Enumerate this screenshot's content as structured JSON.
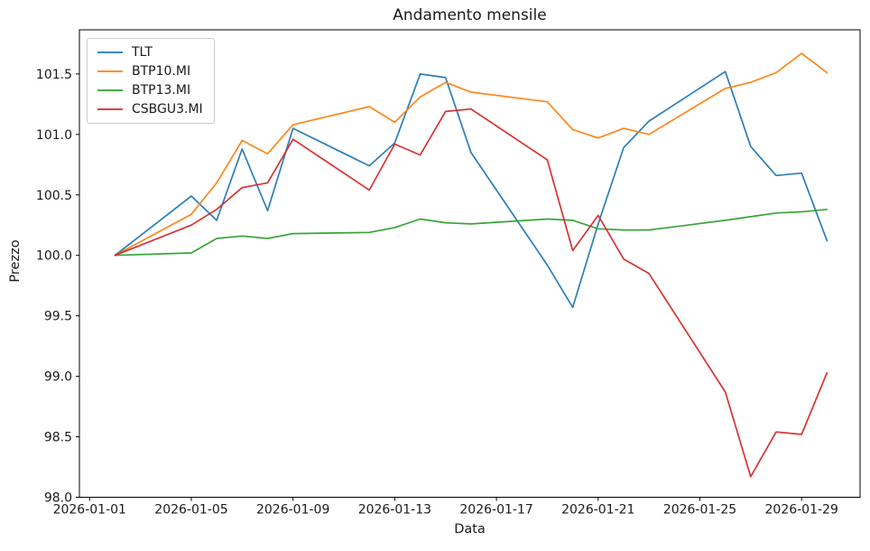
{
  "chart_data": {
    "type": "line",
    "title": "Andamento mensile",
    "xlabel": "Data",
    "ylabel": "Prezzo",
    "background": "#ffffff",
    "grid": false,
    "legend_position": "upper left",
    "x_tick_labels": [
      "2026-01-01",
      "2026-01-05",
      "2026-01-09",
      "2026-01-13",
      "2026-01-17",
      "2026-01-21",
      "2026-01-25",
      "2026-01-29"
    ],
    "y_tick_labels": [
      "98.0",
      "98.5",
      "99.0",
      "99.5",
      "100.0",
      "100.5",
      "101.0",
      "101.5"
    ],
    "ylim": [
      98.0,
      101.865
    ],
    "xlim_days": [
      0.6,
      31.3
    ],
    "dates": [
      "2026-01-02",
      "2026-01-05",
      "2026-01-06",
      "2026-01-07",
      "2026-01-08",
      "2026-01-09",
      "2026-01-12",
      "2026-01-13",
      "2026-01-14",
      "2026-01-15",
      "2026-01-16",
      "2026-01-19",
      "2026-01-20",
      "2026-01-21",
      "2026-01-22",
      "2026-01-23",
      "2026-01-26",
      "2026-01-27",
      "2026-01-28",
      "2026-01-29",
      "2026-01-30"
    ],
    "series": [
      {
        "name": "TLT",
        "color": "#1f77b4",
        "values": [
          100.0,
          100.49,
          100.29,
          100.88,
          100.37,
          101.05,
          100.74,
          100.93,
          101.5,
          101.47,
          100.85,
          99.92,
          99.57,
          100.26,
          100.89,
          101.11,
          101.52,
          100.9,
          100.66,
          100.68,
          100.12
        ]
      },
      {
        "name": "BTP10.MI",
        "color": "#ff7f0e",
        "values": [
          100.0,
          100.34,
          100.6,
          100.95,
          100.84,
          101.08,
          101.23,
          101.1,
          101.31,
          101.43,
          101.35,
          101.27,
          101.04,
          100.97,
          101.05,
          101.0,
          101.38,
          101.43,
          101.51,
          101.67,
          101.51
        ]
      },
      {
        "name": "BTP13.MI",
        "color": "#2ca02c",
        "values": [
          100.0,
          100.02,
          100.14,
          100.16,
          100.14,
          100.18,
          100.19,
          100.23,
          100.3,
          100.27,
          100.26,
          100.3,
          100.29,
          100.22,
          100.21,
          100.21,
          100.29,
          100.32,
          100.35,
          100.36,
          100.38
        ]
      },
      {
        "name": "CSBGU3.MI",
        "color": "#d62728",
        "values": [
          100.0,
          100.25,
          100.38,
          100.56,
          100.6,
          100.96,
          100.54,
          100.92,
          100.83,
          101.19,
          101.21,
          100.79,
          100.04,
          100.33,
          99.97,
          99.85,
          98.87,
          98.17,
          98.54,
          98.52,
          99.03
        ]
      }
    ]
  }
}
